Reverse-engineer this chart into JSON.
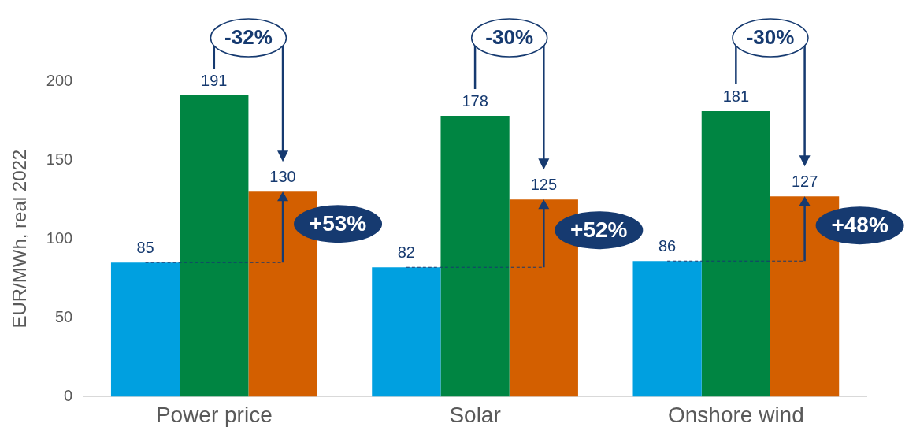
{
  "chart_data": {
    "type": "bar",
    "ylabel": "EUR/MWh, real 2022",
    "categories": [
      "Power price",
      "Solar",
      "Onshore wind"
    ],
    "series": [
      {
        "color": "#00a0e0",
        "values": [
          85,
          82,
          86
        ]
      },
      {
        "color": "#008542",
        "values": [
          191,
          178,
          181
        ]
      },
      {
        "color": "#d35f00",
        "values": [
          130,
          125,
          127
        ]
      }
    ],
    "ylim": [
      0,
      200
    ],
    "yticks": [
      0,
      50,
      100,
      150,
      200
    ],
    "grid": false,
    "legend": false,
    "data_labels": true,
    "annotations": [
      "-32%",
      "-30%",
      "-30%",
      "+53%",
      "+52%",
      "+48%"
    ]
  }
}
